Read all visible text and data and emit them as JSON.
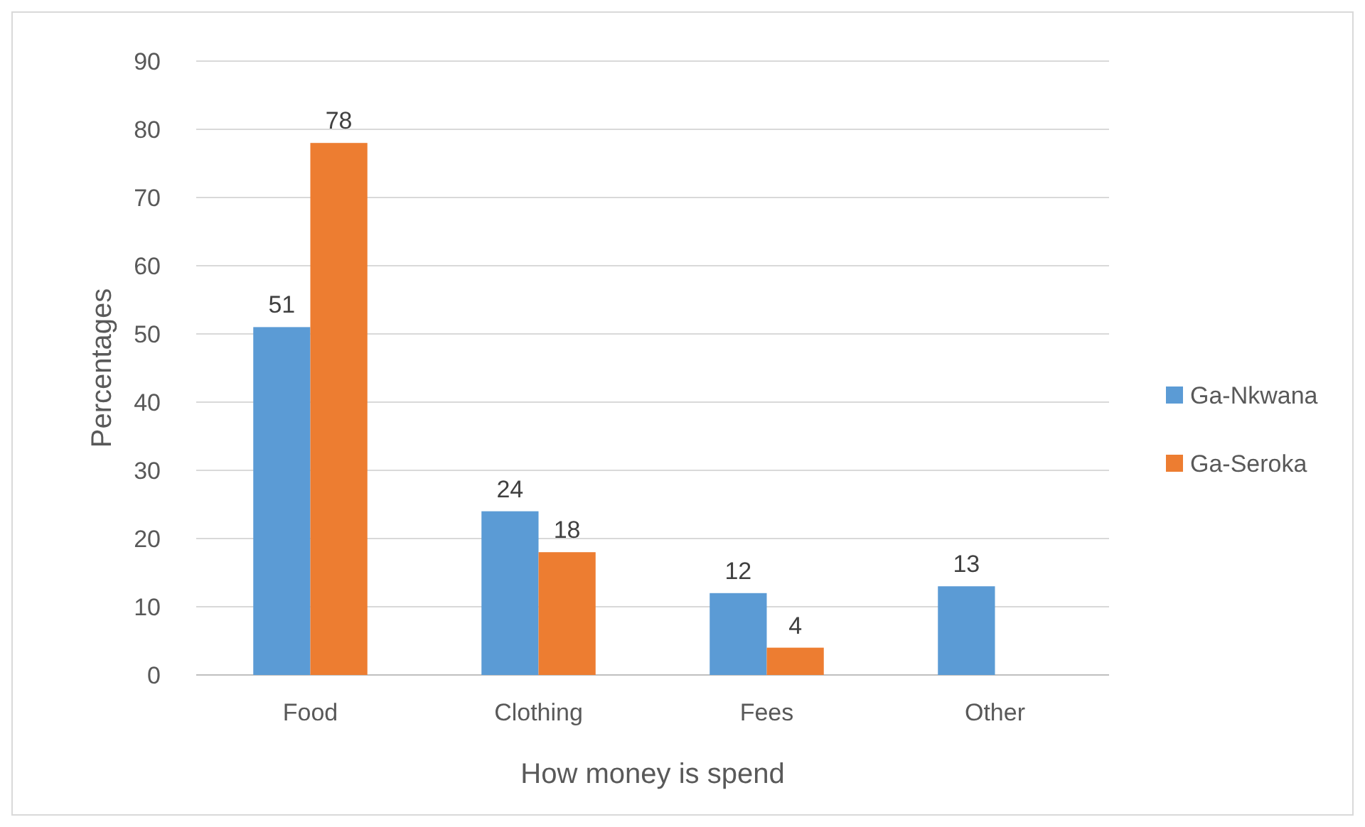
{
  "chart_data": {
    "type": "bar",
    "xlabel": "How money is spend",
    "ylabel": "Percentages",
    "categories": [
      "Food",
      "Clothing",
      "Fees",
      "Other"
    ],
    "series": [
      {
        "name": "Ga-Nkwana",
        "color": "#5b9bd5",
        "values": [
          51,
          24,
          12,
          13
        ]
      },
      {
        "name": "Ga-Seroka",
        "color": "#ed7d31",
        "values": [
          78,
          18,
          4,
          null
        ]
      }
    ],
    "ylim": [
      0,
      90
    ],
    "yticks": [
      0,
      10,
      20,
      30,
      40,
      50,
      60,
      70,
      80,
      90
    ],
    "grid": "y",
    "legend": "right",
    "data_labels": true
  }
}
